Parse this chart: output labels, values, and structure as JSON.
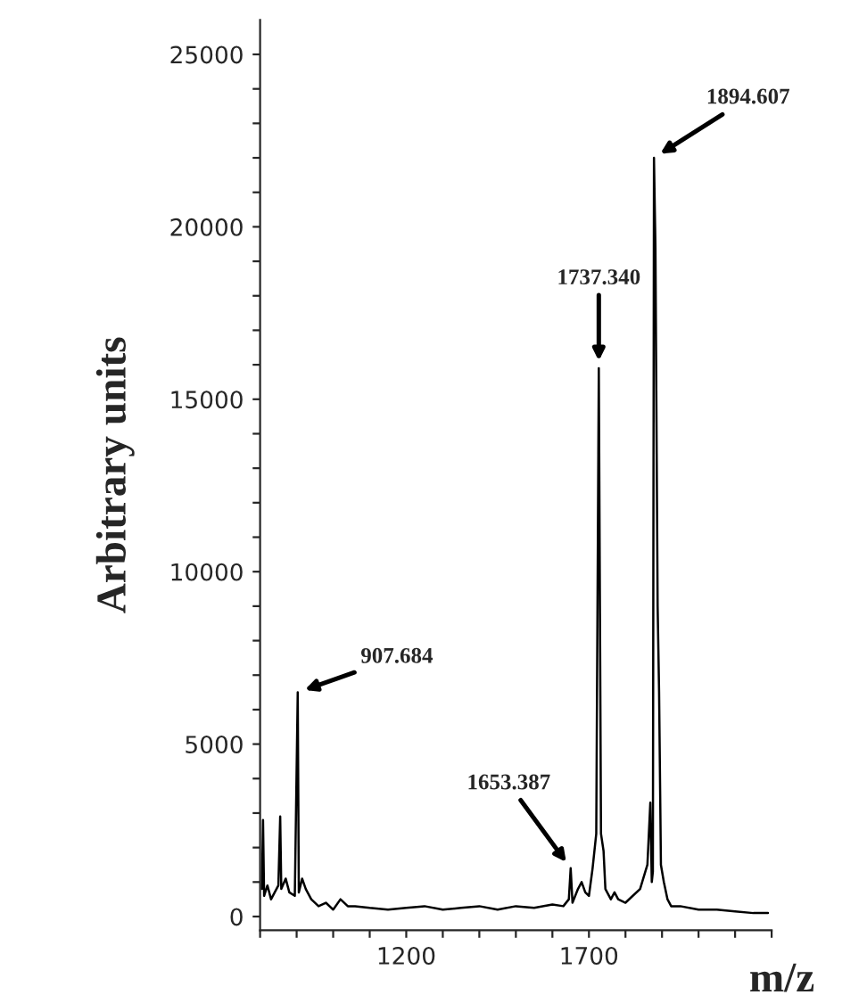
{
  "chart_data": {
    "type": "line",
    "xlabel": "m/z",
    "ylabel": "Arbitrary units",
    "xlim": [
      800,
      2200
    ],
    "ylim": [
      -400,
      26000
    ],
    "xticks": [
      {
        "value": 800,
        "label": null
      },
      {
        "value": 900,
        "label": null
      },
      {
        "value": 1000,
        "label": null
      },
      {
        "value": 1100,
        "label": null
      },
      1200,
      {
        "value": 1300,
        "label": null
      },
      {
        "value": 1400,
        "label": null
      },
      {
        "value": 1500,
        "label": null
      },
      {
        "value": 1600,
        "label": null
      },
      1700,
      {
        "value": 1800,
        "label": null
      },
      {
        "value": 1900,
        "label": null
      },
      {
        "value": 2000,
        "label": null
      },
      {
        "value": 2100,
        "label": null
      },
      {
        "value": 2200,
        "label": null
      }
    ],
    "yticks": [
      0,
      {
        "value": 1000,
        "label": null
      },
      {
        "value": 2000,
        "label": null
      },
      {
        "value": 3000,
        "label": null
      },
      {
        "value": 4000,
        "label": null
      },
      5000,
      {
        "value": 6000,
        "label": null
      },
      {
        "value": 7000,
        "label": null
      },
      {
        "value": 8000,
        "label": null
      },
      {
        "value": 9000,
        "label": null
      },
      10000,
      {
        "value": 11000,
        "label": null
      },
      {
        "value": 12000,
        "label": null
      },
      {
        "value": 13000,
        "label": null
      },
      {
        "value": 14000,
        "label": null
      },
      15000,
      {
        "value": 16000,
        "label": null
      },
      {
        "value": 17000,
        "label": null
      },
      {
        "value": 18000,
        "label": null
      },
      {
        "value": 19000,
        "label": null
      },
      20000,
      {
        "value": 21000,
        "label": null
      },
      {
        "value": 22000,
        "label": null
      },
      {
        "value": 23000,
        "label": null
      },
      {
        "value": 24000,
        "label": null
      },
      25000
    ],
    "grid": false,
    "legend": false,
    "marker": "none",
    "line_style": "solid",
    "series": [
      {
        "color": "#000000",
        "x": [
          805,
          808,
          811,
          820,
          830,
          840,
          850,
          855,
          858,
          870,
          880,
          895,
          903,
          906,
          915,
          925,
          940,
          960,
          980,
          1000,
          1020,
          1040,
          1060,
          1100,
          1150,
          1200,
          1250,
          1300,
          1350,
          1400,
          1450,
          1500,
          1550,
          1600,
          1630,
          1645,
          1650,
          1655,
          1670,
          1680,
          1690,
          1700,
          1710,
          1720,
          1727,
          1733,
          1740,
          1745,
          1760,
          1770,
          1780,
          1800,
          1820,
          1840,
          1860,
          1868,
          1872,
          1875,
          1878,
          1882,
          1888,
          1892,
          1897,
          1905,
          1915,
          1925,
          1950,
          2000,
          2050,
          2100,
          2150,
          2190
        ],
        "values": [
          800,
          2800,
          600,
          900,
          500,
          700,
          900,
          2900,
          800,
          1100,
          700,
          600,
          6500,
          700,
          1100,
          800,
          500,
          300,
          400,
          200,
          500,
          300,
          300,
          250,
          200,
          250,
          300,
          200,
          250,
          300,
          200,
          300,
          250,
          350,
          300,
          500,
          1400,
          400,
          800,
          1000,
          700,
          600,
          1400,
          2400,
          15900,
          2400,
          1900,
          800,
          500,
          700,
          500,
          400,
          600,
          800,
          1500,
          3300,
          1000,
          1300,
          22000,
          19400,
          9000,
          6500,
          1500,
          1000,
          500,
          300,
          300,
          200,
          200,
          150,
          100,
          100
        ]
      }
    ],
    "annotations": [
      {
        "text": "907.684",
        "x": 903,
        "y": 6500
      },
      {
        "text": "1653.387",
        "x": 1650,
        "y": 1400
      },
      {
        "text": "1737.340",
        "x": 1727,
        "y": 15900
      },
      {
        "text": "1894.607",
        "x": 1878,
        "y": 22000
      }
    ]
  }
}
